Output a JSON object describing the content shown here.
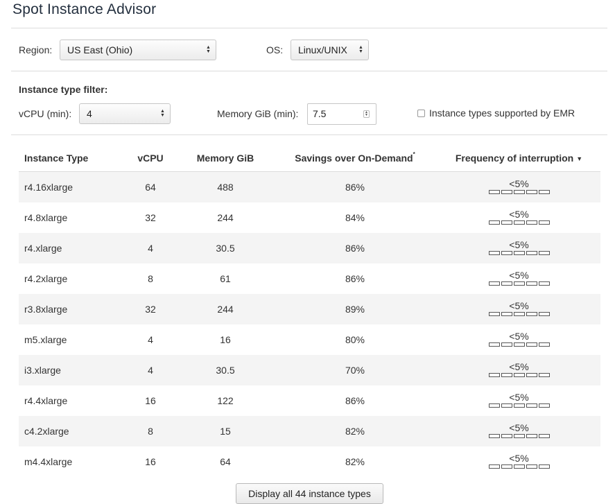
{
  "title": "Spot Instance Advisor",
  "region": {
    "label": "Region:",
    "value": "US East (Ohio)"
  },
  "os": {
    "label": "OS:",
    "value": "Linux/UNIX"
  },
  "filter": {
    "title": "Instance type filter:",
    "vcpu_label": "vCPU (min):",
    "vcpu_value": "4",
    "memory_label": "Memory GiB (min):",
    "memory_value": "7.5",
    "emr_label": "Instance types supported by EMR",
    "emr_checked": false
  },
  "table": {
    "headers": {
      "instance_type": "Instance Type",
      "vcpu": "vCPU",
      "memory": "Memory GiB",
      "savings": "Savings over On-Demand",
      "savings_marker": "*",
      "frequency": "Frequency of interruption",
      "frequency_sort_icon": "caret-down-icon"
    },
    "rows": [
      {
        "type": "r4.16xlarge",
        "vcpu": "64",
        "memory": "488",
        "savings": "86%",
        "frequency": "<5%",
        "frequency_level": 0
      },
      {
        "type": "r4.8xlarge",
        "vcpu": "32",
        "memory": "244",
        "savings": "84%",
        "frequency": "<5%",
        "frequency_level": 0
      },
      {
        "type": "r4.xlarge",
        "vcpu": "4",
        "memory": "30.5",
        "savings": "86%",
        "frequency": "<5%",
        "frequency_level": 0
      },
      {
        "type": "r4.2xlarge",
        "vcpu": "8",
        "memory": "61",
        "savings": "86%",
        "frequency": "<5%",
        "frequency_level": 0
      },
      {
        "type": "r3.8xlarge",
        "vcpu": "32",
        "memory": "244",
        "savings": "89%",
        "frequency": "<5%",
        "frequency_level": 0
      },
      {
        "type": "m5.xlarge",
        "vcpu": "4",
        "memory": "16",
        "savings": "80%",
        "frequency": "<5%",
        "frequency_level": 0
      },
      {
        "type": "i3.xlarge",
        "vcpu": "4",
        "memory": "30.5",
        "savings": "70%",
        "frequency": "<5%",
        "frequency_level": 0
      },
      {
        "type": "r4.4xlarge",
        "vcpu": "16",
        "memory": "122",
        "savings": "86%",
        "frequency": "<5%",
        "frequency_level": 0
      },
      {
        "type": "c4.2xlarge",
        "vcpu": "8",
        "memory": "15",
        "savings": "82%",
        "frequency": "<5%",
        "frequency_level": 0
      },
      {
        "type": "m4.4xlarge",
        "vcpu": "16",
        "memory": "64",
        "savings": "82%",
        "frequency": "<5%",
        "frequency_level": 0
      }
    ]
  },
  "display_all_button": "Display all 44 instance types"
}
